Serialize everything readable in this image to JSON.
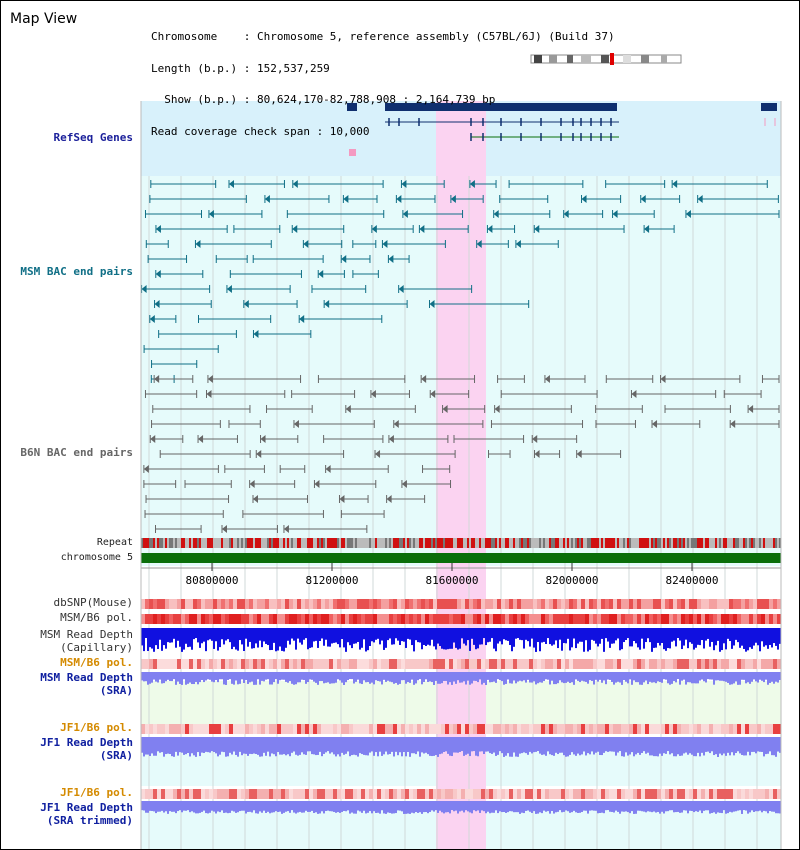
{
  "title": "Map View",
  "info_lines": [
    "Chromosome    : Chromosome 5, reference assembly (C57BL/6J) (Build 37)",
    "Length (b.p.) : 152,537,259",
    "  Show (b.p.) : 80,624,170-82,788,908 : 2,164,739 bp",
    "Read coverage check span : 10,000"
  ],
  "track_labels": {
    "refseq": "RefSeq Genes",
    "msm_bac": "MSM BAC end pairs",
    "b6n_bac": "B6N BAC end pairs",
    "repeat": "Repeat",
    "chromosome": "chromosome 5",
    "dbsnp": "dbSNP(Mouse)",
    "msm_b6_pol_1": "MSM/B6 pol.",
    "msm_read_depth_cap_1": "MSM Read Depth",
    "msm_read_depth_cap_2": "(Capillary)",
    "msm_b6_pol_2": "MSM/B6 pol.",
    "msm_read_depth_sra_1": "MSM Read Depth",
    "msm_read_depth_sra_2": "(SRA)",
    "jf1_b6_pol_1": "JF1/B6 pol.",
    "jf1_read_depth_sra_1": "JF1 Read Depth",
    "jf1_read_depth_sra_2": "(SRA)",
    "jf1_b6_pol_2": "JF1/B6 pol.",
    "jf1_read_depth_trim_1": "JF1 Read Depth",
    "jf1_read_depth_trim_2": "(SRA trimmed)"
  },
  "axis_ticks": [
    "80800000",
    "81200000",
    "81600000",
    "82000000",
    "82400000"
  ],
  "colors": {
    "refseq_bg": "#d8f1fb",
    "track_bg": "#e6fbfb",
    "highlight": "#fbd3f1",
    "refseq_gene": "#0f2f6e",
    "msm_feature": "#106f86",
    "b6n_feature": "#666666",
    "chromosome": "#0a6e0a",
    "read_depth": "#1010e0",
    "read_depth_light": "#8080f0"
  }
}
